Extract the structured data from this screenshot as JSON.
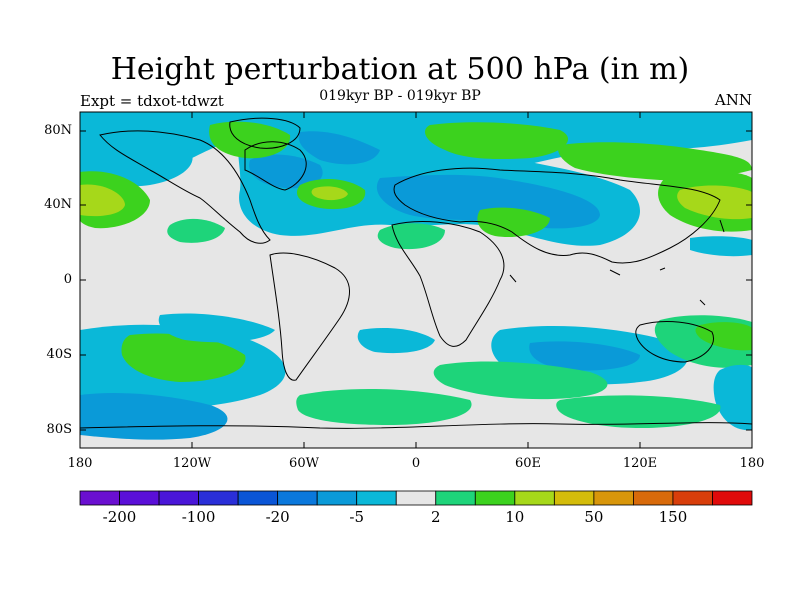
{
  "title": "Height perturbation at 500 hPa (in m)",
  "subtitle": "019kyr BP - 019kyr BP",
  "left_label": "Expt = tdxot-tdwzt",
  "right_label": "ANN",
  "lat_ticks": [
    "80N",
    "40N",
    "0",
    "40S",
    "80S"
  ],
  "lon_ticks": [
    "180",
    "120W",
    "60W",
    "0",
    "60E",
    "120E",
    "180"
  ],
  "colorbar": {
    "colors": [
      "#6a0fd0",
      "#5a0fd8",
      "#4a16d8",
      "#2a2fd8",
      "#0a55d6",
      "#0a78dc",
      "#0a9ad8",
      "#0ab8d8",
      "#e6e6e6",
      "#1ed47a",
      "#3cd21e",
      "#a6d81a",
      "#d4bc0a",
      "#d8960a",
      "#d86a0a",
      "#d83e0a",
      "#e00a0a"
    ],
    "labels": [
      "-200",
      "-100",
      "-20",
      "-5",
      "2",
      "10",
      "50",
      "150"
    ]
  }
}
